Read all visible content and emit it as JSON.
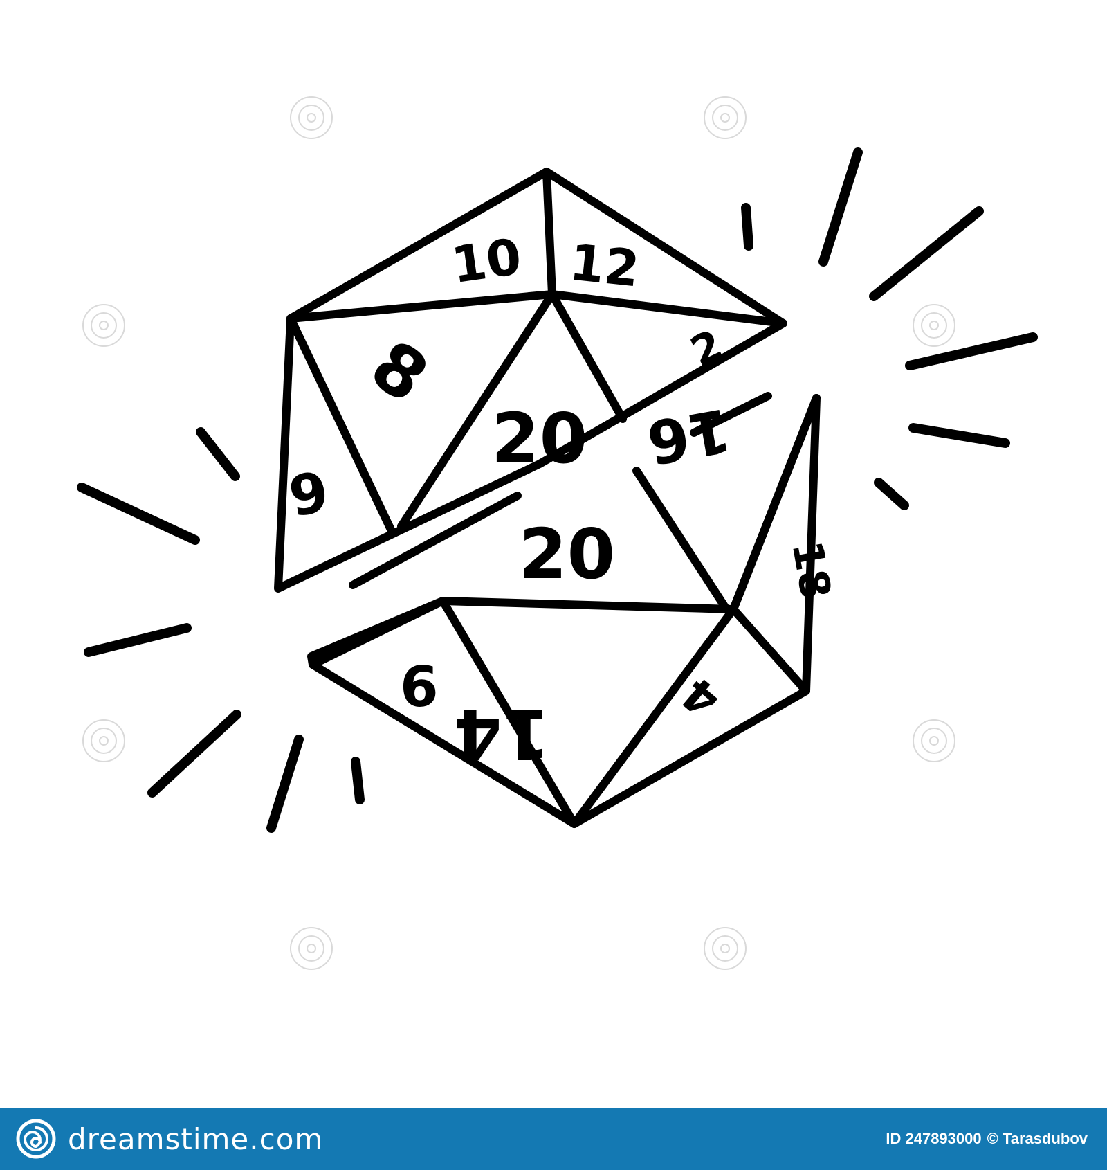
{
  "illustration": {
    "subject": "d20-dice-split-icon",
    "faces_top": [
      "10",
      "12",
      "8",
      "20",
      "9",
      "2"
    ],
    "faces_bottom": [
      "20",
      "18",
      "6",
      "14",
      "4",
      "16"
    ],
    "line_color": "#000000",
    "background_color": "#ffffff"
  },
  "watermark": {
    "text": "dreamstime.com"
  },
  "footer": {
    "background_color": "#1479b3",
    "brand": "dreamstime.com",
    "image_id": "ID 247893000",
    "author": "© Tarasdubov"
  }
}
